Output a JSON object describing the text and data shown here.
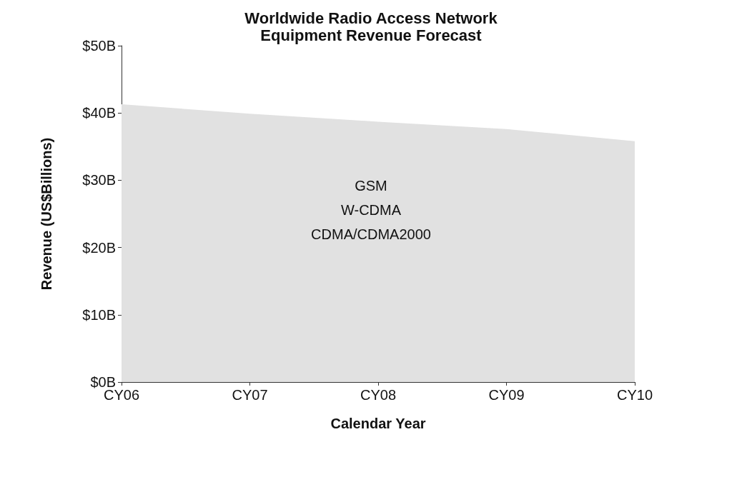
{
  "chart_data": {
    "type": "area",
    "title": "Worldwide Radio Access Network\nEquipment Revenue Forecast",
    "xlabel": "Calendar Year",
    "ylabel": "Revenue (US$Billions)",
    "categories": [
      "CY06",
      "CY07",
      "CY08",
      "CY09",
      "CY10"
    ],
    "series": [
      {
        "color": "#e1e1e1",
        "values": [
          41.3,
          39.9,
          38.7,
          37.6,
          35.8
        ]
      }
    ],
    "ylim": [
      0,
      50
    ],
    "yticks": [
      {
        "value": 0,
        "label": "$0B"
      },
      {
        "value": 10,
        "label": "$10B"
      },
      {
        "value": 20,
        "label": "$20B"
      },
      {
        "value": 30,
        "label": "$30B"
      },
      {
        "value": 40,
        "label": "$40B"
      },
      {
        "value": 50,
        "label": "$50B"
      }
    ],
    "annotations": [
      "GSM",
      "W-CDMA",
      "CDMA/CDMA2000"
    ],
    "grid": false
  }
}
